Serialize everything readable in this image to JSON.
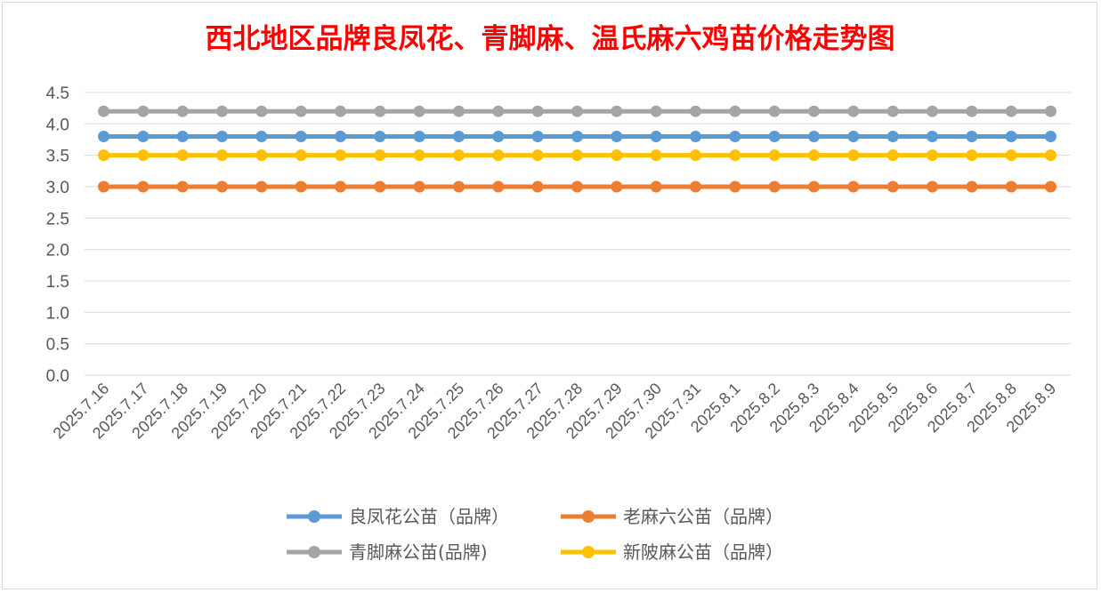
{
  "chart_data": {
    "type": "line",
    "title": "西北地区品牌良凤花、青脚麻、温氏麻六鸡苗价格走势图",
    "title_color": "#ff0000",
    "xlabel": "",
    "ylabel": "",
    "ylim": [
      0,
      4.5
    ],
    "y_ticks": [
      "0.0",
      "0.5",
      "1.0",
      "1.5",
      "2.0",
      "2.5",
      "3.0",
      "3.5",
      "4.0",
      "4.5"
    ],
    "grid": true,
    "legend_position": "bottom",
    "x": [
      "2025.7.16",
      "2025.7.17",
      "2025.7.18",
      "2025.7.19",
      "2025.7.20",
      "2025.7.21",
      "2025.7.22",
      "2025.7.23",
      "2025.7.24",
      "2025.7.25",
      "2025.7.26",
      "2025.7.27",
      "2025.7.28",
      "2025.7.29",
      "2025.7.30",
      "2025.7.31",
      "2025.8.1",
      "2025.8.2",
      "2025.8.3",
      "2025.8.4",
      "2025.8.5",
      "2025.8.6",
      "2025.8.7",
      "2025.8.8",
      "2025.8.9"
    ],
    "series": [
      {
        "name": "良凤花公苗（品牌）",
        "color": "#5b9bd5",
        "values": [
          3.8,
          3.8,
          3.8,
          3.8,
          3.8,
          3.8,
          3.8,
          3.8,
          3.8,
          3.8,
          3.8,
          3.8,
          3.8,
          3.8,
          3.8,
          3.8,
          3.8,
          3.8,
          3.8,
          3.8,
          3.8,
          3.8,
          3.8,
          3.8,
          3.8
        ]
      },
      {
        "name": "老麻六公苗（品牌）",
        "color": "#ed7d31",
        "values": [
          3.0,
          3.0,
          3.0,
          3.0,
          3.0,
          3.0,
          3.0,
          3.0,
          3.0,
          3.0,
          3.0,
          3.0,
          3.0,
          3.0,
          3.0,
          3.0,
          3.0,
          3.0,
          3.0,
          3.0,
          3.0,
          3.0,
          3.0,
          3.0,
          3.0
        ]
      },
      {
        "name": "青脚麻公苗(品牌)",
        "color": "#a5a5a5",
        "values": [
          4.2,
          4.2,
          4.2,
          4.2,
          4.2,
          4.2,
          4.2,
          4.2,
          4.2,
          4.2,
          4.2,
          4.2,
          4.2,
          4.2,
          4.2,
          4.2,
          4.2,
          4.2,
          4.2,
          4.2,
          4.2,
          4.2,
          4.2,
          4.2,
          4.2
        ]
      },
      {
        "name": "新陂麻公苗（品牌）",
        "color": "#ffc000",
        "values": [
          3.5,
          3.5,
          3.5,
          3.5,
          3.5,
          3.5,
          3.5,
          3.5,
          3.5,
          3.5,
          3.5,
          3.5,
          3.5,
          3.5,
          3.5,
          3.5,
          3.5,
          3.5,
          3.5,
          3.5,
          3.5,
          3.5,
          3.5,
          3.5,
          3.5
        ]
      }
    ]
  }
}
